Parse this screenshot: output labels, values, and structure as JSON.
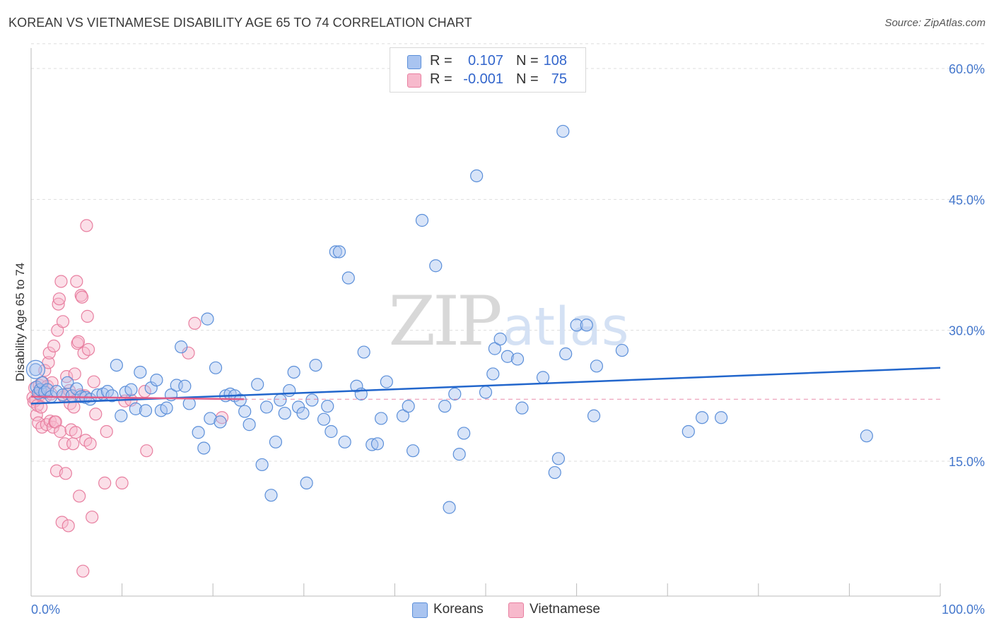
{
  "header": {
    "title": "KOREAN VS VIETNAMESE DISABILITY AGE 65 TO 74 CORRELATION CHART",
    "source": "Source: ZipAtlas.com"
  },
  "watermark": {
    "zip": "ZIP",
    "atlas": "atlas"
  },
  "legend": {
    "rows": [
      {
        "r_label": "R =",
        "r_value": "0.107",
        "n_label": "N =",
        "n_value": "108"
      },
      {
        "r_label": "R =",
        "r_value": "-0.001",
        "n_label": "N =",
        "n_value": "75"
      }
    ]
  },
  "colors": {
    "korean_fill": "#a9c4f0",
    "korean_stroke": "#5b8fd9",
    "korean_line": "#2266cc",
    "vietnamese_fill": "#f7b9cc",
    "vietnamese_stroke": "#e87fa0",
    "vietnamese_line": "#e05c88",
    "tick_text": "#4477cc",
    "grid": "#dddddd"
  },
  "chart_data": {
    "type": "scatter",
    "title": "KOREAN VS VIETNAMESE DISABILITY AGE 65 TO 74 CORRELATION CHART",
    "xlabel": "",
    "ylabel": "Disability Age 65 to 74",
    "xlim": [
      0,
      100
    ],
    "ylim": [
      0,
      63
    ],
    "x_tick_labels": [
      "0.0%",
      "100.0%"
    ],
    "y_ticks": [
      15,
      30,
      45,
      60
    ],
    "y_tick_labels": [
      "15.0%",
      "30.0%",
      "45.0%",
      "60.0%"
    ],
    "grid": true,
    "legend_position": "top-center",
    "series": [
      {
        "name": "Koreans",
        "r": 0.107,
        "n": 108,
        "trend": {
          "x": [
            0,
            100
          ],
          "y": [
            21.6,
            25.7
          ]
        },
        "points": [
          [
            0.5,
            25.5
          ],
          [
            0.6,
            23.5
          ],
          [
            0.8,
            22.8
          ],
          [
            1.0,
            23.2
          ],
          [
            1.2,
            24.0
          ],
          [
            1.5,
            22.9
          ],
          [
            1.8,
            23.2
          ],
          [
            2.2,
            22.4
          ],
          [
            2.8,
            23.0
          ],
          [
            3.5,
            22.6
          ],
          [
            4.0,
            24.0
          ],
          [
            4.5,
            22.5
          ],
          [
            5.0,
            23.3
          ],
          [
            5.5,
            22.4
          ],
          [
            6.0,
            22.3
          ],
          [
            6.5,
            22.1
          ],
          [
            7.3,
            22.6
          ],
          [
            7.9,
            22.7
          ],
          [
            8.4,
            23.0
          ],
          [
            8.9,
            22.5
          ],
          [
            9.4,
            26.0
          ],
          [
            9.9,
            20.2
          ],
          [
            10.4,
            22.9
          ],
          [
            11.0,
            23.2
          ],
          [
            11.5,
            21.0
          ],
          [
            12.0,
            25.2
          ],
          [
            12.6,
            20.8
          ],
          [
            13.2,
            23.4
          ],
          [
            13.8,
            24.3
          ],
          [
            14.3,
            20.8
          ],
          [
            14.9,
            21.1
          ],
          [
            15.4,
            22.6
          ],
          [
            16.0,
            23.7
          ],
          [
            16.5,
            28.1
          ],
          [
            16.9,
            23.6
          ],
          [
            17.4,
            21.6
          ],
          [
            18.4,
            18.3
          ],
          [
            19.0,
            16.5
          ],
          [
            19.4,
            31.3
          ],
          [
            19.7,
            19.9
          ],
          [
            20.3,
            25.7
          ],
          [
            20.8,
            19.5
          ],
          [
            21.4,
            22.5
          ],
          [
            21.9,
            22.7
          ],
          [
            22.4,
            22.5
          ],
          [
            23.0,
            22.0
          ],
          [
            23.5,
            20.7
          ],
          [
            24.0,
            19.2
          ],
          [
            24.9,
            23.8
          ],
          [
            25.4,
            14.6
          ],
          [
            25.9,
            21.2
          ],
          [
            26.4,
            11.1
          ],
          [
            26.9,
            17.2
          ],
          [
            27.4,
            22.0
          ],
          [
            27.9,
            20.5
          ],
          [
            28.4,
            23.1
          ],
          [
            28.9,
            25.2
          ],
          [
            29.4,
            21.2
          ],
          [
            29.9,
            20.5
          ],
          [
            30.3,
            12.5
          ],
          [
            30.9,
            22.0
          ],
          [
            31.3,
            26.0
          ],
          [
            32.2,
            19.8
          ],
          [
            32.6,
            21.3
          ],
          [
            33.0,
            18.4
          ],
          [
            33.5,
            39.0
          ],
          [
            33.9,
            39.0
          ],
          [
            34.5,
            17.2
          ],
          [
            34.9,
            36.0
          ],
          [
            35.8,
            23.6
          ],
          [
            36.3,
            22.7
          ],
          [
            36.6,
            27.5
          ],
          [
            37.5,
            16.9
          ],
          [
            38.1,
            17.0
          ],
          [
            38.5,
            19.9
          ],
          [
            39.1,
            24.1
          ],
          [
            40.9,
            20.2
          ],
          [
            41.5,
            21.3
          ],
          [
            42.0,
            16.2
          ],
          [
            43.0,
            42.6
          ],
          [
            44.5,
            37.4
          ],
          [
            45.5,
            21.3
          ],
          [
            46.0,
            9.7
          ],
          [
            46.6,
            22.7
          ],
          [
            47.1,
            15.8
          ],
          [
            47.6,
            18.2
          ],
          [
            49.0,
            47.7
          ],
          [
            50.0,
            22.9
          ],
          [
            50.8,
            25.0
          ],
          [
            51.0,
            27.9
          ],
          [
            51.6,
            29.0
          ],
          [
            52.4,
            27.0
          ],
          [
            53.5,
            26.7
          ],
          [
            54.0,
            21.1
          ],
          [
            56.3,
            24.6
          ],
          [
            57.6,
            13.7
          ],
          [
            58.0,
            15.3
          ],
          [
            58.5,
            52.8
          ],
          [
            58.8,
            27.3
          ],
          [
            60.0,
            30.6
          ],
          [
            61.1,
            30.6
          ],
          [
            61.9,
            20.2
          ],
          [
            62.2,
            25.9
          ],
          [
            65.0,
            27.7
          ],
          [
            72.3,
            18.4
          ],
          [
            73.8,
            20.0
          ],
          [
            75.9,
            20.0
          ],
          [
            91.9,
            17.9
          ]
        ]
      },
      {
        "name": "Vietnamese",
        "r": -0.001,
        "n": 75,
        "trend": {
          "x": [
            0,
            23.4
          ],
          "y": [
            22.4,
            22.1
          ]
        },
        "dashed_extension": {
          "x": [
            23.4,
            100
          ],
          "y": [
            22.1,
            22.1
          ]
        },
        "points": [
          [
            0.2,
            22.3
          ],
          [
            0.3,
            21.8
          ],
          [
            0.4,
            23.4
          ],
          [
            0.5,
            22.0
          ],
          [
            0.6,
            20.3
          ],
          [
            0.7,
            21.4
          ],
          [
            0.8,
            19.4
          ],
          [
            0.9,
            23.7
          ],
          [
            1.0,
            22.6
          ],
          [
            1.1,
            21.2
          ],
          [
            1.2,
            18.9
          ],
          [
            1.3,
            24.0
          ],
          [
            1.4,
            23.1
          ],
          [
            1.5,
            25.4
          ],
          [
            1.6,
            22.4
          ],
          [
            1.7,
            19.2
          ],
          [
            1.8,
            23.6
          ],
          [
            1.9,
            26.3
          ],
          [
            2.0,
            27.4
          ],
          [
            2.1,
            19.6
          ],
          [
            2.2,
            22.7
          ],
          [
            2.3,
            24.0
          ],
          [
            2.4,
            18.9
          ],
          [
            2.5,
            28.2
          ],
          [
            2.6,
            19.5
          ],
          [
            2.7,
            19.5
          ],
          [
            2.8,
            13.9
          ],
          [
            2.9,
            30.0
          ],
          [
            3.0,
            33.0
          ],
          [
            3.1,
            33.6
          ],
          [
            3.2,
            18.4
          ],
          [
            3.3,
            35.6
          ],
          [
            3.4,
            8.0
          ],
          [
            3.5,
            31.0
          ],
          [
            3.6,
            22.4
          ],
          [
            3.7,
            17.0
          ],
          [
            3.8,
            13.6
          ],
          [
            3.9,
            24.7
          ],
          [
            4.0,
            22.7
          ],
          [
            4.1,
            7.6
          ],
          [
            4.2,
            23.1
          ],
          [
            4.3,
            21.6
          ],
          [
            4.4,
            18.6
          ],
          [
            4.6,
            17.0
          ],
          [
            4.7,
            21.2
          ],
          [
            4.8,
            25.0
          ],
          [
            4.9,
            18.3
          ],
          [
            5.0,
            35.6
          ],
          [
            5.1,
            28.5
          ],
          [
            5.2,
            28.7
          ],
          [
            5.3,
            11.0
          ],
          [
            5.4,
            22.6
          ],
          [
            5.5,
            34.0
          ],
          [
            5.6,
            33.8
          ],
          [
            5.7,
            2.4
          ],
          [
            5.8,
            27.4
          ],
          [
            5.9,
            22.5
          ],
          [
            6.0,
            17.4
          ],
          [
            6.1,
            42.0
          ],
          [
            6.2,
            31.6
          ],
          [
            6.3,
            27.8
          ],
          [
            6.5,
            17.0
          ],
          [
            6.7,
            8.6
          ],
          [
            6.9,
            24.1
          ],
          [
            7.1,
            20.4
          ],
          [
            8.1,
            12.5
          ],
          [
            8.3,
            18.4
          ],
          [
            10.0,
            12.5
          ],
          [
            10.3,
            21.9
          ],
          [
            11.0,
            22.0
          ],
          [
            12.5,
            23.0
          ],
          [
            12.7,
            16.2
          ],
          [
            17.3,
            27.4
          ],
          [
            18.0,
            30.8
          ],
          [
            21.0,
            20.0
          ]
        ]
      }
    ]
  },
  "bottom_legend": {
    "items": [
      {
        "label": "Koreans"
      },
      {
        "label": "Vietnamese"
      }
    ]
  }
}
